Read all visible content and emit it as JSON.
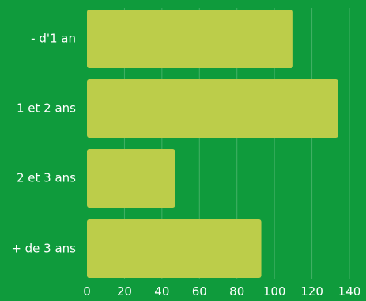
{
  "chart_data": {
    "type": "bar",
    "orientation": "horizontal",
    "categories": [
      "- d'1 an",
      "1 et 2 ans",
      "2 et 3 ans",
      "+ de 3 ans"
    ],
    "values": [
      110,
      134,
      47,
      93
    ],
    "xlim": [
      0,
      140
    ],
    "xticks": [
      0,
      20,
      40,
      60,
      80,
      100,
      120,
      140
    ],
    "grid": true,
    "colors": {
      "background": "#0f9b3c",
      "bar": "#bccd4a",
      "text": "#ffffff"
    }
  }
}
